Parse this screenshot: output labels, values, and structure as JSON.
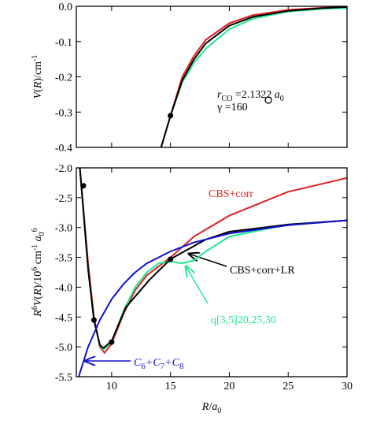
{
  "chart_data": [
    {
      "type": "line",
      "ylabel": [
        "V",
        "(",
        "R",
        ")/cm",
        "-1"
      ],
      "ylabel_format": [
        "italic",
        "normal",
        "italic",
        "normal",
        "sup"
      ],
      "xlim": [
        7,
        30
      ],
      "xticks": [
        10,
        15,
        20,
        25,
        30
      ],
      "show_xtick_labels": false,
      "ylim": [
        -0.4,
        0
      ],
      "yticks": [
        {
          "value": 0,
          "label": "0.0"
        },
        -0.1,
        -0.2,
        -0.3,
        -0.4
      ],
      "annotations": [
        {
          "text": [
            "r",
            "CO",
            " =2.1322  ",
            "a",
            "0"
          ],
          "format": [
            "italic",
            "sub",
            "normal",
            "italic",
            "sub"
          ]
        },
        {
          "text": [
            "γ",
            " =160"
          ],
          "format": [
            "normal",
            "normal"
          ]
        }
      ],
      "series": [
        {
          "color": "#e02020",
          "x": [
            14.2,
            15,
            16,
            17,
            18,
            20,
            22,
            25,
            28,
            30
          ],
          "values": [
            -0.4,
            -0.31,
            -0.2,
            -0.14,
            -0.095,
            -0.048,
            -0.025,
            -0.01,
            -0.004,
            -0.002
          ]
        },
        {
          "color": "#20e890",
          "x": [
            14.2,
            15,
            16,
            17,
            18,
            20,
            22,
            25,
            28,
            30
          ],
          "values": [
            -0.4,
            -0.31,
            -0.215,
            -0.16,
            -0.12,
            -0.065,
            -0.035,
            -0.015,
            -0.007,
            -0.005
          ]
        },
        {
          "color": "#000000",
          "x": [
            14.2,
            15,
            16,
            17,
            18,
            20,
            22,
            25,
            28,
            30
          ],
          "values": [
            -0.4,
            -0.31,
            -0.21,
            -0.15,
            -0.105,
            -0.055,
            -0.03,
            -0.013,
            -0.005,
            -0.002
          ]
        },
        {
          "color": "#000000",
          "marker": "dot",
          "x": [
            15
          ],
          "values": [
            -0.31
          ]
        }
      ]
    },
    {
      "type": "line",
      "ylabel": [
        "R",
        "6",
        "V",
        "(",
        "R",
        ")/10",
        "6",
        " cm",
        "-1",
        " a",
        "0",
        "6"
      ],
      "ylabel_format": [
        "italic",
        "sup",
        "italic",
        "normal",
        "italic",
        "normal",
        "sup",
        "normal",
        "sup",
        "italic",
        "sub",
        "sup"
      ],
      "xlabel": [
        "R",
        "/",
        "a",
        "0"
      ],
      "xlabel_format": [
        "italic",
        "normal",
        "italic",
        "sub"
      ],
      "xlim": [
        7,
        30
      ],
      "xticks": [
        10,
        15,
        20,
        25,
        30
      ],
      "show_xtick_labels": true,
      "ylim": [
        -5.5,
        -2
      ],
      "yticks": [
        {
          "value": -2,
          "label": "-2.0"
        },
        -2.5,
        {
          "value": -3,
          "label": "-3.0"
        },
        -3.5,
        {
          "value": -4,
          "label": "-4.0"
        },
        -4.5,
        {
          "value": -5,
          "label": "-5.0"
        },
        -5.5
      ],
      "series": [
        {
          "name": "CBS+corr",
          "color": "#e02020",
          "x": [
            7.3,
            8,
            8.5,
            9,
            9.4,
            10,
            11,
            12,
            13,
            15,
            17,
            20,
            25,
            30
          ],
          "values": [
            -2.0,
            -3.6,
            -4.5,
            -5.0,
            -5.1,
            -4.95,
            -4.45,
            -4.05,
            -3.8,
            -3.5,
            -3.15,
            -2.8,
            -2.4,
            -2.17
          ]
        },
        {
          "name": "q[3,5]20,25,30",
          "color": "#20e890",
          "x": [
            7.3,
            8,
            8.5,
            9,
            9.3,
            10,
            11,
            12,
            13,
            14,
            15,
            16,
            17,
            18,
            20,
            25,
            30
          ],
          "values": [
            -2.0,
            -3.7,
            -4.55,
            -4.97,
            -5.05,
            -4.92,
            -4.4,
            -4.0,
            -3.75,
            -3.6,
            -3.57,
            -3.6,
            -3.55,
            -3.4,
            -3.15,
            -2.95,
            -2.88
          ]
        },
        {
          "name": "CBS+corr+LR",
          "color": "#000000",
          "x": [
            7.3,
            8,
            8.5,
            9,
            9.3,
            10,
            11.2,
            13.2,
            15,
            16,
            18,
            20,
            25,
            30
          ],
          "values": [
            -2.0,
            -3.7,
            -4.55,
            -4.97,
            -5.02,
            -4.9,
            -4.34,
            -3.88,
            -3.53,
            -3.42,
            -3.2,
            -3.07,
            -2.95,
            -2.88
          ]
        },
        {
          "name": "C6+C7+C8",
          "color": "#1010d0",
          "x": [
            7.2,
            8,
            9,
            10,
            11,
            12,
            13,
            15,
            17,
            20,
            25,
            30
          ],
          "values": [
            -5.5,
            -5.0,
            -4.55,
            -4.2,
            -3.95,
            -3.75,
            -3.6,
            -3.4,
            -3.25,
            -3.1,
            -2.96,
            -2.88
          ]
        },
        {
          "color": "#000000",
          "marker": "dot",
          "x": [
            7.6,
            8.5,
            10,
            15
          ],
          "values": [
            -2.3,
            -4.55,
            -4.92,
            -3.53
          ]
        }
      ]
    }
  ]
}
